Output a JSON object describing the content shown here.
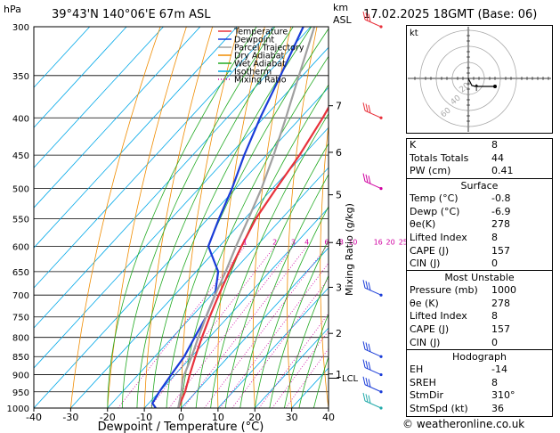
{
  "header": {
    "hpa_label": "hPa",
    "location": "39°43'N 140°06'E 67m ASL",
    "km_label": "km",
    "asl_label": "ASL",
    "datetime": "17.02.2025 18GMT (Base: 06)"
  },
  "chart_data": {
    "type": "line",
    "xlabel": "Dewpoint / Temperature (°C)",
    "ylabel_right": "Mixing Ratio (g/kg)",
    "x_ticks": [
      -40,
      -30,
      -20,
      -10,
      0,
      10,
      20,
      30,
      40
    ],
    "xlim": [
      -40,
      40
    ],
    "pressure_ticks": [
      300,
      350,
      400,
      450,
      500,
      550,
      600,
      650,
      700,
      750,
      800,
      850,
      900,
      950,
      1000
    ],
    "ylim": [
      1000,
      300
    ],
    "km_ticks": [
      {
        "label": "7",
        "p": 385
      },
      {
        "label": "6",
        "p": 446
      },
      {
        "label": "5",
        "p": 510
      },
      {
        "label": "4",
        "p": 593
      },
      {
        "label": "3",
        "p": 683
      },
      {
        "label": "2",
        "p": 790
      },
      {
        "label": "1",
        "p": 898
      }
    ],
    "lcl_label": "LCL",
    "lcl_p": 910,
    "mixing_ratio_labels": [
      "1",
      "2",
      "3",
      "4",
      "6",
      "8",
      "10",
      "16",
      "20",
      "25"
    ],
    "mixing_ratios": [
      1,
      2,
      3,
      4,
      6,
      8,
      10,
      16,
      20,
      25
    ],
    "legend": [
      {
        "name": "Temperature",
        "color": "#e8323c",
        "style": "solid"
      },
      {
        "name": "Dewpoint",
        "color": "#1a3cd8",
        "style": "solid"
      },
      {
        "name": "Parcel Trajectory",
        "color": "#a0a0a0",
        "style": "solid"
      },
      {
        "name": "Dry Adiabat",
        "color": "#f08c00",
        "style": "solid"
      },
      {
        "name": "Wet Adiabat",
        "color": "#22aa22",
        "style": "solid"
      },
      {
        "name": "Isotherm",
        "color": "#00a8e8",
        "style": "solid"
      },
      {
        "name": "Mixing Ratio",
        "color": "#d000a0",
        "style": "dotted"
      }
    ],
    "series": [
      {
        "name": "Temperature",
        "color": "#e8323c",
        "points": [
          [
            -0.8,
            1000
          ],
          [
            -3,
            950
          ],
          [
            -6,
            900
          ],
          [
            -9,
            850
          ],
          [
            -12,
            800
          ],
          [
            -15,
            750
          ],
          [
            -18,
            700
          ],
          [
            -21,
            650
          ],
          [
            -24,
            600
          ],
          [
            -27,
            550
          ],
          [
            -29,
            500
          ],
          [
            -31,
            450
          ],
          [
            -34,
            400
          ],
          [
            -38,
            350
          ],
          [
            -43,
            300
          ]
        ]
      },
      {
        "name": "Dewpoint",
        "color": "#1a3cd8",
        "points": [
          [
            -6.9,
            1000
          ],
          [
            -9,
            985
          ],
          [
            -10,
            950
          ],
          [
            -11,
            900
          ],
          [
            -12,
            850
          ],
          [
            -14,
            800
          ],
          [
            -16,
            750
          ],
          [
            -19,
            700
          ],
          [
            -24,
            650
          ],
          [
            -33,
            600
          ],
          [
            -37,
            550
          ],
          [
            -41,
            500
          ],
          [
            -46,
            450
          ],
          [
            -51,
            400
          ],
          [
            -56,
            350
          ],
          [
            -62,
            300
          ]
        ]
      },
      {
        "name": "Parcel Trajectory",
        "color": "#a0a0a0",
        "points": [
          [
            -0.8,
            1000
          ],
          [
            -4,
            950
          ],
          [
            -7,
            910
          ],
          [
            -10,
            850
          ],
          [
            -13,
            800
          ],
          [
            -16,
            750
          ],
          [
            -19,
            700
          ],
          [
            -22,
            650
          ],
          [
            -25.5,
            600
          ],
          [
            -29,
            550
          ],
          [
            -33,
            500
          ],
          [
            -38,
            450
          ],
          [
            -44,
            400
          ],
          [
            -51,
            350
          ],
          [
            -59,
            300
          ]
        ]
      }
    ]
  },
  "hodograph": {
    "label": "kt",
    "rings": [
      "20",
      "40",
      "60"
    ]
  },
  "indices": {
    "k_label": "K",
    "k_value": "8",
    "tt_label": "Totals Totals",
    "tt_value": "44",
    "pw_label": "PW (cm)",
    "pw_value": "0.41"
  },
  "surface": {
    "title": "Surface",
    "rows": [
      {
        "label": "Temp (°C)",
        "value": "-0.8"
      },
      {
        "label": "Dewp (°C)",
        "value": "-6.9"
      },
      {
        "label": "θe(K)",
        "value": "278"
      },
      {
        "label": "Lifted Index",
        "value": "8"
      },
      {
        "label": "CAPE (J)",
        "value": "157"
      },
      {
        "label": "CIN (J)",
        "value": "0"
      }
    ]
  },
  "most_unstable": {
    "title": "Most Unstable",
    "rows": [
      {
        "label": "Pressure (mb)",
        "value": "1000"
      },
      {
        "label": "θe (K)",
        "value": "278"
      },
      {
        "label": "Lifted Index",
        "value": "8"
      },
      {
        "label": "CAPE (J)",
        "value": "157"
      },
      {
        "label": "CIN (J)",
        "value": "0"
      }
    ]
  },
  "hodograph_table": {
    "title": "Hodograph",
    "rows": [
      {
        "label": "EH",
        "value": "-14"
      },
      {
        "label": "SREH",
        "value": "8"
      },
      {
        "label": "StmDir",
        "value": "310°"
      },
      {
        "label": "StmSpd (kt)",
        "value": "36"
      }
    ]
  },
  "footer": {
    "copyright": "© weatheronline.co.uk"
  }
}
